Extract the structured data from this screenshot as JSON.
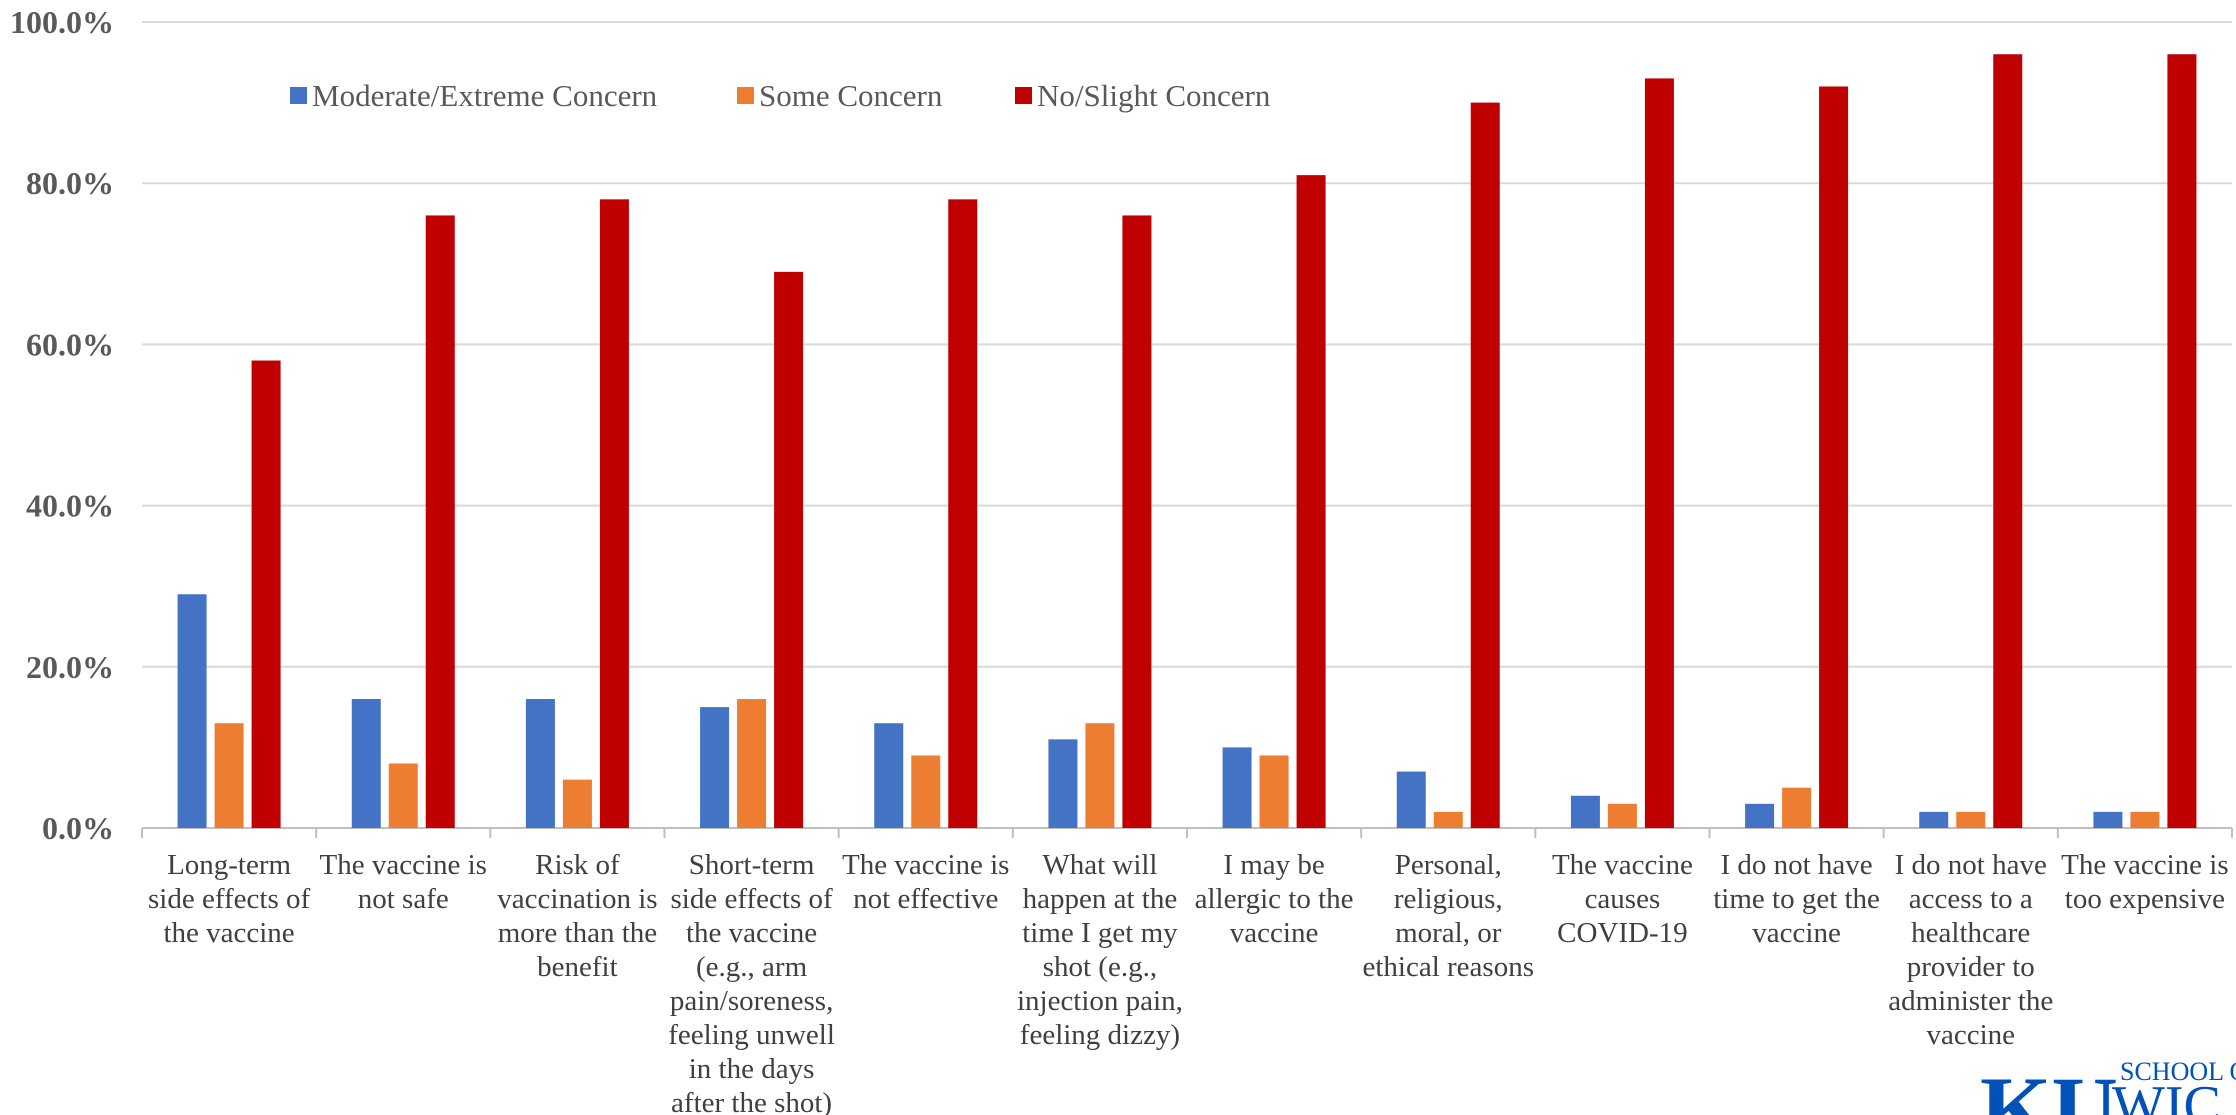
{
  "chart_data": {
    "type": "bar",
    "title": "",
    "xlabel": "",
    "ylabel": "",
    "ylim": [
      0,
      100
    ],
    "yticks": [
      "0.0%",
      "20.0%",
      "40.0%",
      "60.0%",
      "80.0%",
      "100.0%"
    ],
    "grid": true,
    "legend_position": "top-left",
    "categories": [
      [
        "Long-term",
        "side effects of",
        "the vaccine"
      ],
      [
        "The vaccine is",
        "not safe"
      ],
      [
        "Risk of",
        "vaccination is",
        "more than the",
        "benefit"
      ],
      [
        "Short-term",
        "side effects of",
        "the vaccine",
        "(e.g.,  arm",
        "pain/soreness,",
        "feeling unwell",
        "in the days",
        "after the shot)"
      ],
      [
        "The vaccine is",
        "not effective"
      ],
      [
        "What will",
        "happen at the",
        "time I get my",
        "shot (e.g.,",
        "injection pain,",
        "feeling dizzy)"
      ],
      [
        "I may be",
        "allergic to the",
        "vaccine"
      ],
      [
        "Personal,",
        "religious,",
        "moral, or",
        "ethical reasons"
      ],
      [
        "The vaccine",
        "causes",
        "COVID-19"
      ],
      [
        "I do not have",
        "time to get the",
        "vaccine"
      ],
      [
        "I do not have",
        "access to a",
        "healthcare",
        "provider to",
        "administer the",
        "vaccine"
      ],
      [
        "The vaccine is",
        "too expensive"
      ]
    ],
    "series": [
      {
        "name": "Moderate/Extreme Concern",
        "color": "#4472c4",
        "values": [
          29,
          16,
          16,
          15,
          13,
          11,
          10,
          7,
          4,
          3,
          2,
          2
        ]
      },
      {
        "name": "Some Concern",
        "color": "#ed7d31",
        "values": [
          13,
          8,
          6,
          16,
          9,
          13,
          9,
          2,
          3,
          5,
          2,
          2
        ]
      },
      {
        "name": "No/Slight Concern",
        "color": "#c00000",
        "values": [
          58,
          76,
          78,
          69,
          78,
          76,
          81,
          90,
          93,
          92,
          96,
          96
        ]
      }
    ]
  },
  "logo": {
    "mark": "KU",
    "line1": "SCHOOL O",
    "line2": "WIC"
  }
}
